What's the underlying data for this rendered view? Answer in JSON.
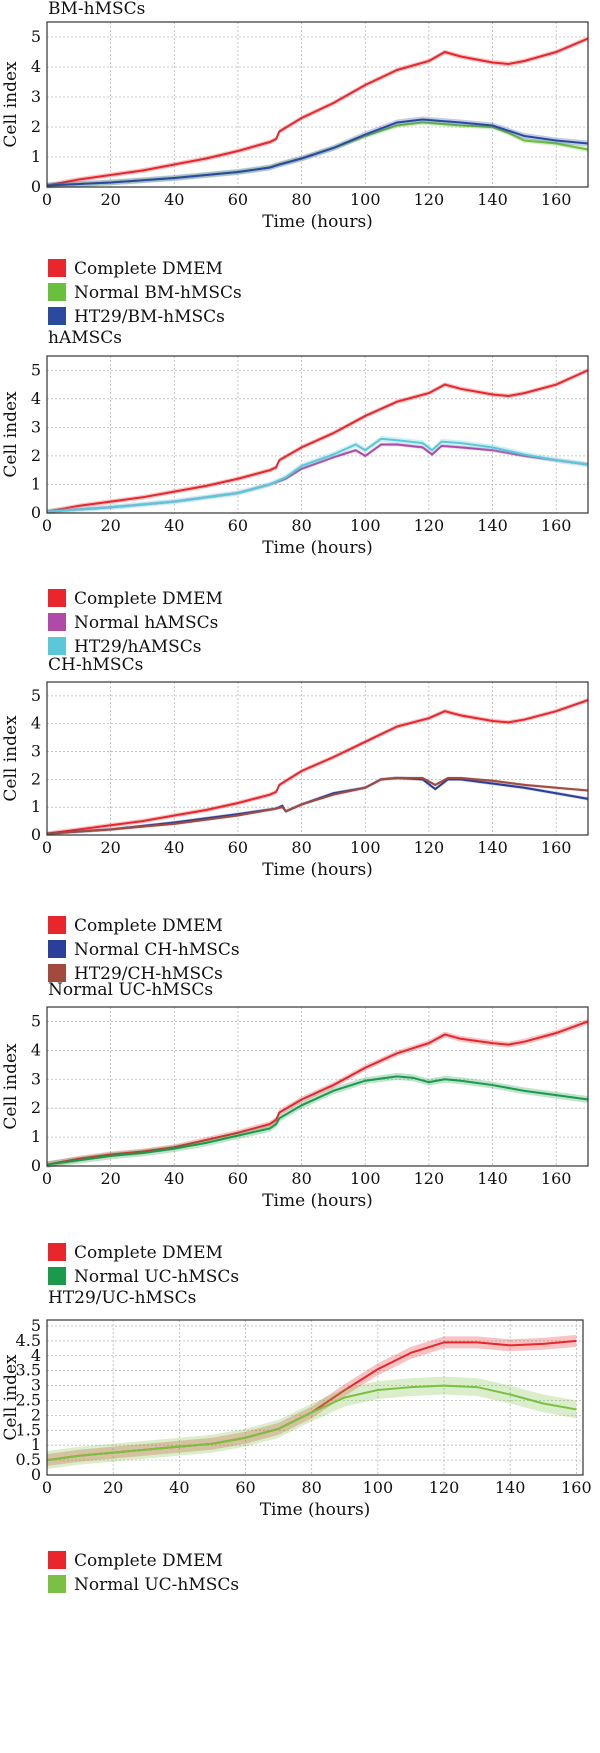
{
  "chart_data": [
    {
      "type": "line",
      "title": "BM-hMSCs",
      "xlabel": "Time (hours)",
      "ylabel": "Cell index",
      "xlim": [
        0,
        170
      ],
      "ylim": [
        0,
        5.5
      ],
      "xticks": [
        0,
        20,
        40,
        60,
        80,
        100,
        120,
        140,
        160
      ],
      "yticks": [
        0,
        1,
        2,
        3,
        4,
        5
      ],
      "grid": true,
      "legend_position": "below",
      "series": [
        {
          "name": "Complete DMEM",
          "color": "#e8262b",
          "x": [
            0,
            10,
            20,
            30,
            40,
            50,
            60,
            70,
            72,
            73,
            80,
            90,
            100,
            110,
            120,
            125,
            130,
            140,
            145,
            150,
            160,
            170
          ],
          "y": [
            0.05,
            0.25,
            0.4,
            0.55,
            0.75,
            0.95,
            1.2,
            1.5,
            1.6,
            1.85,
            2.3,
            2.8,
            3.4,
            3.9,
            4.2,
            4.5,
            4.35,
            4.15,
            4.1,
            4.2,
            4.5,
            4.95
          ],
          "band": 0.08
        },
        {
          "name": "Normal BM-hMSCs",
          "color": "#6abf3c",
          "x": [
            0,
            20,
            40,
            60,
            70,
            73,
            80,
            90,
            100,
            110,
            118,
            130,
            140,
            145,
            150,
            160,
            170
          ],
          "y": [
            0.05,
            0.15,
            0.3,
            0.5,
            0.65,
            0.75,
            0.95,
            1.3,
            1.7,
            2.05,
            2.15,
            2.05,
            2.0,
            1.8,
            1.55,
            1.45,
            1.25
          ],
          "band": 0.08
        },
        {
          "name": "HT29/BM-hMSCs",
          "color": "#2a4aa0",
          "x": [
            0,
            20,
            40,
            60,
            70,
            73,
            80,
            90,
            100,
            110,
            118,
            130,
            140,
            150,
            160,
            170
          ],
          "y": [
            0.05,
            0.15,
            0.3,
            0.5,
            0.65,
            0.75,
            0.95,
            1.3,
            1.75,
            2.15,
            2.25,
            2.15,
            2.05,
            1.7,
            1.55,
            1.45
          ],
          "band": 0.1
        }
      ]
    },
    {
      "type": "line",
      "title": "hAMSCs",
      "xlabel": "Time (hours)",
      "ylabel": "Cell index",
      "xlim": [
        0,
        170
      ],
      "ylim": [
        0,
        5.5
      ],
      "xticks": [
        0,
        20,
        40,
        60,
        80,
        100,
        120,
        140,
        160
      ],
      "yticks": [
        0,
        1,
        2,
        3,
        4,
        5
      ],
      "grid": true,
      "legend_position": "below",
      "series": [
        {
          "name": "Complete DMEM",
          "color": "#e8262b",
          "x": [
            0,
            10,
            20,
            30,
            40,
            50,
            60,
            70,
            72,
            73,
            80,
            90,
            100,
            110,
            120,
            125,
            130,
            140,
            145,
            150,
            160,
            170
          ],
          "y": [
            0.05,
            0.25,
            0.4,
            0.55,
            0.75,
            0.95,
            1.2,
            1.5,
            1.6,
            1.85,
            2.3,
            2.8,
            3.4,
            3.9,
            4.2,
            4.5,
            4.35,
            4.15,
            4.1,
            4.2,
            4.5,
            5.0
          ],
          "band": 0.08
        },
        {
          "name": "Normal hAMSCs",
          "color": "#b04aa8",
          "x": [
            0,
            20,
            40,
            60,
            70,
            75,
            80,
            90,
            97,
            100,
            105,
            110,
            118,
            121,
            124,
            130,
            140,
            150,
            160,
            170
          ],
          "y": [
            0.05,
            0.2,
            0.4,
            0.7,
            1.0,
            1.2,
            1.55,
            1.95,
            2.2,
            2.0,
            2.4,
            2.4,
            2.3,
            2.05,
            2.35,
            2.3,
            2.2,
            2.0,
            1.85,
            1.7
          ],
          "band": 0.06
        },
        {
          "name": "HT29/hAMSCs",
          "color": "#5ac8d8",
          "x": [
            0,
            20,
            40,
            60,
            70,
            75,
            80,
            90,
            97,
            100,
            105,
            110,
            118,
            121,
            124,
            130,
            140,
            150,
            160,
            170
          ],
          "y": [
            0.05,
            0.2,
            0.4,
            0.7,
            1.0,
            1.25,
            1.65,
            2.05,
            2.4,
            2.2,
            2.6,
            2.55,
            2.45,
            2.2,
            2.5,
            2.45,
            2.3,
            2.05,
            1.85,
            1.7
          ],
          "band": 0.1
        }
      ]
    },
    {
      "type": "line",
      "title": "CH-hMSCs",
      "xlabel": "Time (hours)",
      "ylabel": "Cell index",
      "xlim": [
        0,
        170
      ],
      "ylim": [
        0,
        5.5
      ],
      "xticks": [
        0,
        20,
        40,
        60,
        80,
        100,
        120,
        140,
        160
      ],
      "yticks": [
        0,
        1,
        2,
        3,
        4,
        5
      ],
      "grid": true,
      "legend_position": "below",
      "series": [
        {
          "name": "Complete DMEM",
          "color": "#e8262b",
          "x": [
            0,
            10,
            20,
            30,
            40,
            50,
            60,
            70,
            72,
            73,
            80,
            90,
            100,
            110,
            120,
            125,
            130,
            140,
            145,
            150,
            160,
            170
          ],
          "y": [
            0.05,
            0.2,
            0.35,
            0.5,
            0.7,
            0.9,
            1.15,
            1.45,
            1.55,
            1.8,
            2.3,
            2.8,
            3.35,
            3.9,
            4.2,
            4.45,
            4.3,
            4.1,
            4.05,
            4.15,
            4.45,
            4.85
          ],
          "band": 0.08
        },
        {
          "name": "Normal CH-hMSCs",
          "color": "#2a3f9a",
          "x": [
            0,
            20,
            40,
            60,
            72,
            74,
            75,
            80,
            90,
            100,
            105,
            110,
            118,
            122,
            126,
            130,
            140,
            150,
            160,
            170
          ],
          "y": [
            0.05,
            0.2,
            0.45,
            0.75,
            0.95,
            1.05,
            0.85,
            1.1,
            1.5,
            1.7,
            2.0,
            2.05,
            2.0,
            1.65,
            2.0,
            2.0,
            1.85,
            1.7,
            1.5,
            1.3
          ],
          "band": 0.06
        },
        {
          "name": "HT29/CH-hMSCs",
          "color": "#a24a3e",
          "x": [
            0,
            20,
            40,
            60,
            72,
            74,
            75,
            80,
            90,
            100,
            105,
            110,
            118,
            122,
            126,
            130,
            140,
            150,
            160,
            170
          ],
          "y": [
            0.05,
            0.2,
            0.4,
            0.7,
            0.95,
            1.0,
            0.85,
            1.1,
            1.45,
            1.7,
            2.0,
            2.05,
            2.05,
            1.8,
            2.05,
            2.05,
            1.95,
            1.8,
            1.7,
            1.6
          ],
          "band": 0.05
        }
      ]
    },
    {
      "type": "line",
      "title": "Normal UC-hMSCs",
      "xlabel": "Time (hours)",
      "ylabel": "Cell index",
      "xlim": [
        0,
        170
      ],
      "ylim": [
        0,
        5.5
      ],
      "xticks": [
        0,
        20,
        40,
        60,
        80,
        100,
        120,
        140,
        160
      ],
      "yticks": [
        0,
        1,
        2,
        3,
        4,
        5
      ],
      "grid": true,
      "legend_position": "below",
      "series": [
        {
          "name": "Complete DMEM",
          "color": "#e8262b",
          "x": [
            0,
            10,
            20,
            30,
            40,
            50,
            60,
            70,
            72,
            73,
            80,
            90,
            100,
            110,
            120,
            125,
            130,
            140,
            145,
            150,
            160,
            170
          ],
          "y": [
            0.05,
            0.25,
            0.4,
            0.5,
            0.65,
            0.9,
            1.15,
            1.45,
            1.6,
            1.85,
            2.3,
            2.8,
            3.4,
            3.9,
            4.25,
            4.55,
            4.4,
            4.25,
            4.2,
            4.3,
            4.6,
            5.0
          ],
          "band": 0.1
        },
        {
          "name": "Normal UC-hMSCs",
          "color": "#1a9a4a",
          "x": [
            0,
            10,
            20,
            30,
            40,
            50,
            60,
            70,
            72,
            73,
            80,
            90,
            100,
            110,
            115,
            120,
            125,
            130,
            140,
            150,
            160,
            170
          ],
          "y": [
            0.05,
            0.2,
            0.35,
            0.45,
            0.6,
            0.8,
            1.05,
            1.3,
            1.45,
            1.65,
            2.1,
            2.6,
            2.95,
            3.1,
            3.05,
            2.9,
            3.0,
            2.95,
            2.8,
            2.6,
            2.45,
            2.3
          ],
          "band": 0.12
        }
      ]
    },
    {
      "type": "line",
      "title": "HT29/UC-hMSCs",
      "xlabel": "Time (hours)",
      "ylabel": "Cell index",
      "xlim": [
        0,
        162
      ],
      "ylim": [
        0,
        5.2
      ],
      "xticks": [
        0,
        20,
        40,
        60,
        80,
        100,
        120,
        140,
        160
      ],
      "yticks": [
        0,
        0.5,
        1,
        1.5,
        2,
        2.5,
        3,
        3.5,
        4,
        4.5,
        5
      ],
      "grid": true,
      "legend_position": "below",
      "series": [
        {
          "name": "Complete DMEM",
          "color": "#e8262b",
          "x": [
            0,
            10,
            20,
            30,
            40,
            50,
            60,
            70,
            80,
            90,
            100,
            110,
            120,
            130,
            140,
            150,
            160
          ],
          "y": [
            0.5,
            0.65,
            0.75,
            0.85,
            0.95,
            1.05,
            1.25,
            1.55,
            2.1,
            2.85,
            3.55,
            4.1,
            4.45,
            4.45,
            4.35,
            4.4,
            4.5
          ],
          "band": 0.2
        },
        {
          "name": "Normal UC-hMSCs",
          "color": "#7ac143",
          "x": [
            0,
            10,
            20,
            30,
            40,
            50,
            60,
            70,
            80,
            90,
            100,
            110,
            120,
            130,
            140,
            150,
            160
          ],
          "y": [
            0.5,
            0.65,
            0.75,
            0.85,
            0.95,
            1.05,
            1.25,
            1.55,
            2.1,
            2.6,
            2.85,
            2.95,
            3.0,
            2.95,
            2.7,
            2.4,
            2.2
          ],
          "band": 0.3
        }
      ]
    }
  ]
}
